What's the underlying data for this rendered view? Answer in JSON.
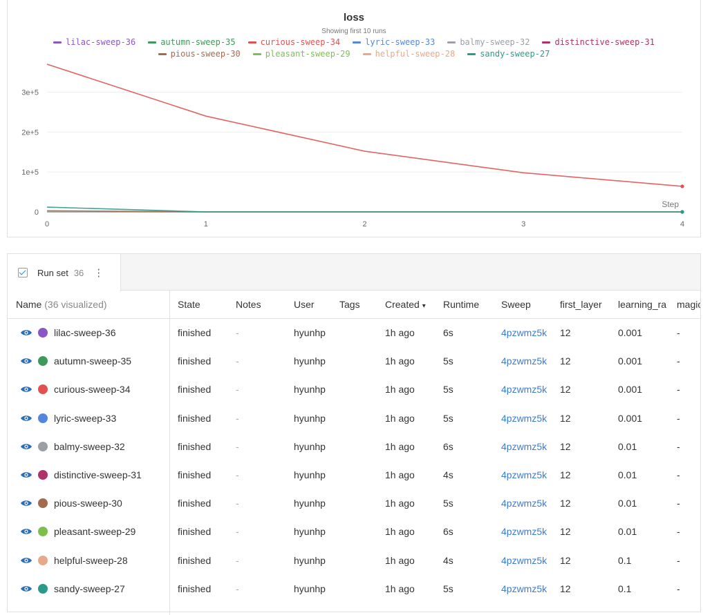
{
  "chart": {
    "title": "loss",
    "subtitle": "Showing first 10 runs",
    "step_label": "Step"
  },
  "legend_rows": [
    [
      {
        "name": "lilac-sweep-36",
        "color": "#8b55c5"
      },
      {
        "name": "autumn-sweep-35",
        "color": "#3d9a58"
      },
      {
        "name": "curious-sweep-34",
        "color": "#e05252"
      },
      {
        "name": "lyric-sweep-33",
        "color": "#5387dd"
      },
      {
        "name": "balmy-sweep-32",
        "color": "#9aa0a6"
      },
      {
        "name": "distinctive-sweep-31",
        "color": "#b0306a"
      }
    ],
    [
      {
        "name": "pious-sweep-30",
        "color": "#a46a4e"
      },
      {
        "name": "pleasant-sweep-29",
        "color": "#7cbf4f"
      },
      {
        "name": "helpful-sweep-28",
        "color": "#e8a88a"
      },
      {
        "name": "sandy-sweep-27",
        "color": "#2a9a8a"
      }
    ]
  ],
  "chart_data": {
    "type": "line",
    "title": "loss",
    "subtitle": "Showing first 10 runs",
    "xlabel": "Step",
    "ylabel": "",
    "x": [
      0,
      1,
      2,
      3,
      4
    ],
    "xlim": [
      0,
      4
    ],
    "ylim": [
      0,
      370000
    ],
    "x_ticks": [
      "0",
      "1",
      "2",
      "3",
      "4"
    ],
    "y_ticks": [
      {
        "v": 0,
        "label": "0"
      },
      {
        "v": 100000,
        "label": "1e+5"
      },
      {
        "v": 200000,
        "label": "2e+5"
      },
      {
        "v": 300000,
        "label": "3e+5"
      }
    ],
    "grid": true,
    "series": [
      {
        "name": "curious-sweep-34",
        "color": "#e05252",
        "values": [
          370000,
          240000,
          152000,
          98000,
          64000
        ]
      },
      {
        "name": "sandy-sweep-27",
        "color": "#2a9a8a",
        "values": [
          12000,
          0,
          0,
          0,
          0
        ]
      },
      {
        "name": "pious-sweep-30",
        "color": "#a46a4e",
        "values": [
          3000,
          0,
          0,
          0,
          0
        ]
      },
      {
        "name": "balmy-sweep-32",
        "color": "#9aa0a6",
        "values": [
          0,
          0,
          0,
          0,
          0
        ]
      },
      {
        "name": "pleasant-sweep-29",
        "color": "#7cbf4f",
        "values": [
          0,
          0,
          0,
          0,
          0
        ]
      }
    ]
  },
  "runset": {
    "tab_label": "Run set",
    "tab_count": "36",
    "kebab": "⋮",
    "columns": {
      "name": "Name",
      "name_sub": "(36 visualized)",
      "state": "State",
      "notes": "Notes",
      "user": "User",
      "tags": "Tags",
      "created": "Created",
      "created_sort": "▾",
      "runtime": "Runtime",
      "sweep": "Sweep",
      "first_layer": "first_layer",
      "learning_rate": "learning_ra",
      "magic": "magic"
    },
    "rows": [
      {
        "name": "lilac-sweep-36",
        "color": "#8b55c5",
        "state": "finished",
        "notes": "-",
        "user": "hyunhp",
        "created": "1h ago",
        "runtime": "6s",
        "sweep": "4pzwmz5k",
        "first_layer": "12",
        "learning_rate": "0.001",
        "magic": "-"
      },
      {
        "name": "autumn-sweep-35",
        "color": "#3d9a58",
        "state": "finished",
        "notes": "-",
        "user": "hyunhp",
        "created": "1h ago",
        "runtime": "5s",
        "sweep": "4pzwmz5k",
        "first_layer": "12",
        "learning_rate": "0.001",
        "magic": "-"
      },
      {
        "name": "curious-sweep-34",
        "color": "#e05252",
        "state": "finished",
        "notes": "-",
        "user": "hyunhp",
        "created": "1h ago",
        "runtime": "5s",
        "sweep": "4pzwmz5k",
        "first_layer": "12",
        "learning_rate": "0.001",
        "magic": "-"
      },
      {
        "name": "lyric-sweep-33",
        "color": "#5387dd",
        "state": "finished",
        "notes": "-",
        "user": "hyunhp",
        "created": "1h ago",
        "runtime": "5s",
        "sweep": "4pzwmz5k",
        "first_layer": "12",
        "learning_rate": "0.001",
        "magic": "-"
      },
      {
        "name": "balmy-sweep-32",
        "color": "#9aa0a6",
        "state": "finished",
        "notes": "-",
        "user": "hyunhp",
        "created": "1h ago",
        "runtime": "6s",
        "sweep": "4pzwmz5k",
        "first_layer": "12",
        "learning_rate": "0.01",
        "magic": "-"
      },
      {
        "name": "distinctive-sweep-31",
        "color": "#b0306a",
        "state": "finished",
        "notes": "-",
        "user": "hyunhp",
        "created": "1h ago",
        "runtime": "4s",
        "sweep": "4pzwmz5k",
        "first_layer": "12",
        "learning_rate": "0.01",
        "magic": "-"
      },
      {
        "name": "pious-sweep-30",
        "color": "#a46a4e",
        "state": "finished",
        "notes": "-",
        "user": "hyunhp",
        "created": "1h ago",
        "runtime": "5s",
        "sweep": "4pzwmz5k",
        "first_layer": "12",
        "learning_rate": "0.01",
        "magic": "-"
      },
      {
        "name": "pleasant-sweep-29",
        "color": "#7cbf4f",
        "state": "finished",
        "notes": "-",
        "user": "hyunhp",
        "created": "1h ago",
        "runtime": "6s",
        "sweep": "4pzwmz5k",
        "first_layer": "12",
        "learning_rate": "0.01",
        "magic": "-"
      },
      {
        "name": "helpful-sweep-28",
        "color": "#e8a88a",
        "state": "finished",
        "notes": "-",
        "user": "hyunhp",
        "created": "1h ago",
        "runtime": "4s",
        "sweep": "4pzwmz5k",
        "first_layer": "12",
        "learning_rate": "0.1",
        "magic": "-"
      },
      {
        "name": "sandy-sweep-27",
        "color": "#2a9a8a",
        "state": "finished",
        "notes": "-",
        "user": "hyunhp",
        "created": "1h ago",
        "runtime": "5s",
        "sweep": "4pzwmz5k",
        "first_layer": "12",
        "learning_rate": "0.1",
        "magic": "-"
      }
    ]
  }
}
